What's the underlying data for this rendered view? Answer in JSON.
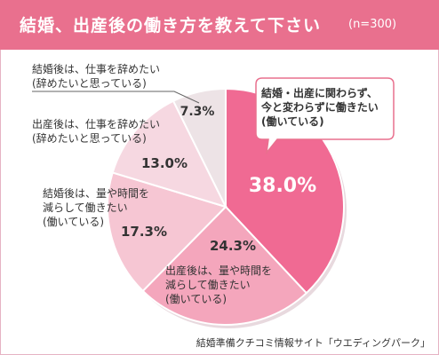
{
  "header": {
    "title": "結婚、出産後の働き方を教えて下さい",
    "n": "(n=300)"
  },
  "chart_data": {
    "type": "pie",
    "title": "結婚、出産後の働き方を教えて下さい",
    "sample": "(n=300)",
    "start": "top, clockwise",
    "slices": [
      {
        "label": [
          "結婚・出産に関わらず、",
          "今と変わらずに働きたい",
          "(働いている)"
        ],
        "value": 38.0,
        "value_text": "38.0%",
        "color": "#f06a93"
      },
      {
        "label": [
          "出産後は、量や時間を",
          "減らして働きたい",
          "(働いている)"
        ],
        "value": 24.3,
        "value_text": "24.3%",
        "color": "#f4a6bc"
      },
      {
        "label": [
          "結婚後は、量や時間を",
          "減らして働きたい",
          "(働いている)"
        ],
        "value": 17.3,
        "value_text": "17.3%",
        "color": "#f6c6d3"
      },
      {
        "label": [
          "出産後は、仕事を辞めたい",
          "(辞めたいと思っている)"
        ],
        "value": 13.0,
        "value_text": "13.0%",
        "color": "#f6d8e1"
      },
      {
        "label": [
          "結婚後は、仕事を辞めたい",
          "(辞めたいと思っている)"
        ],
        "value": 7.3,
        "value_text": "7.3%",
        "color": "#ede3e6"
      }
    ]
  },
  "source": "結婚準備クチコミ情報サイト「ウエディングパーク」"
}
